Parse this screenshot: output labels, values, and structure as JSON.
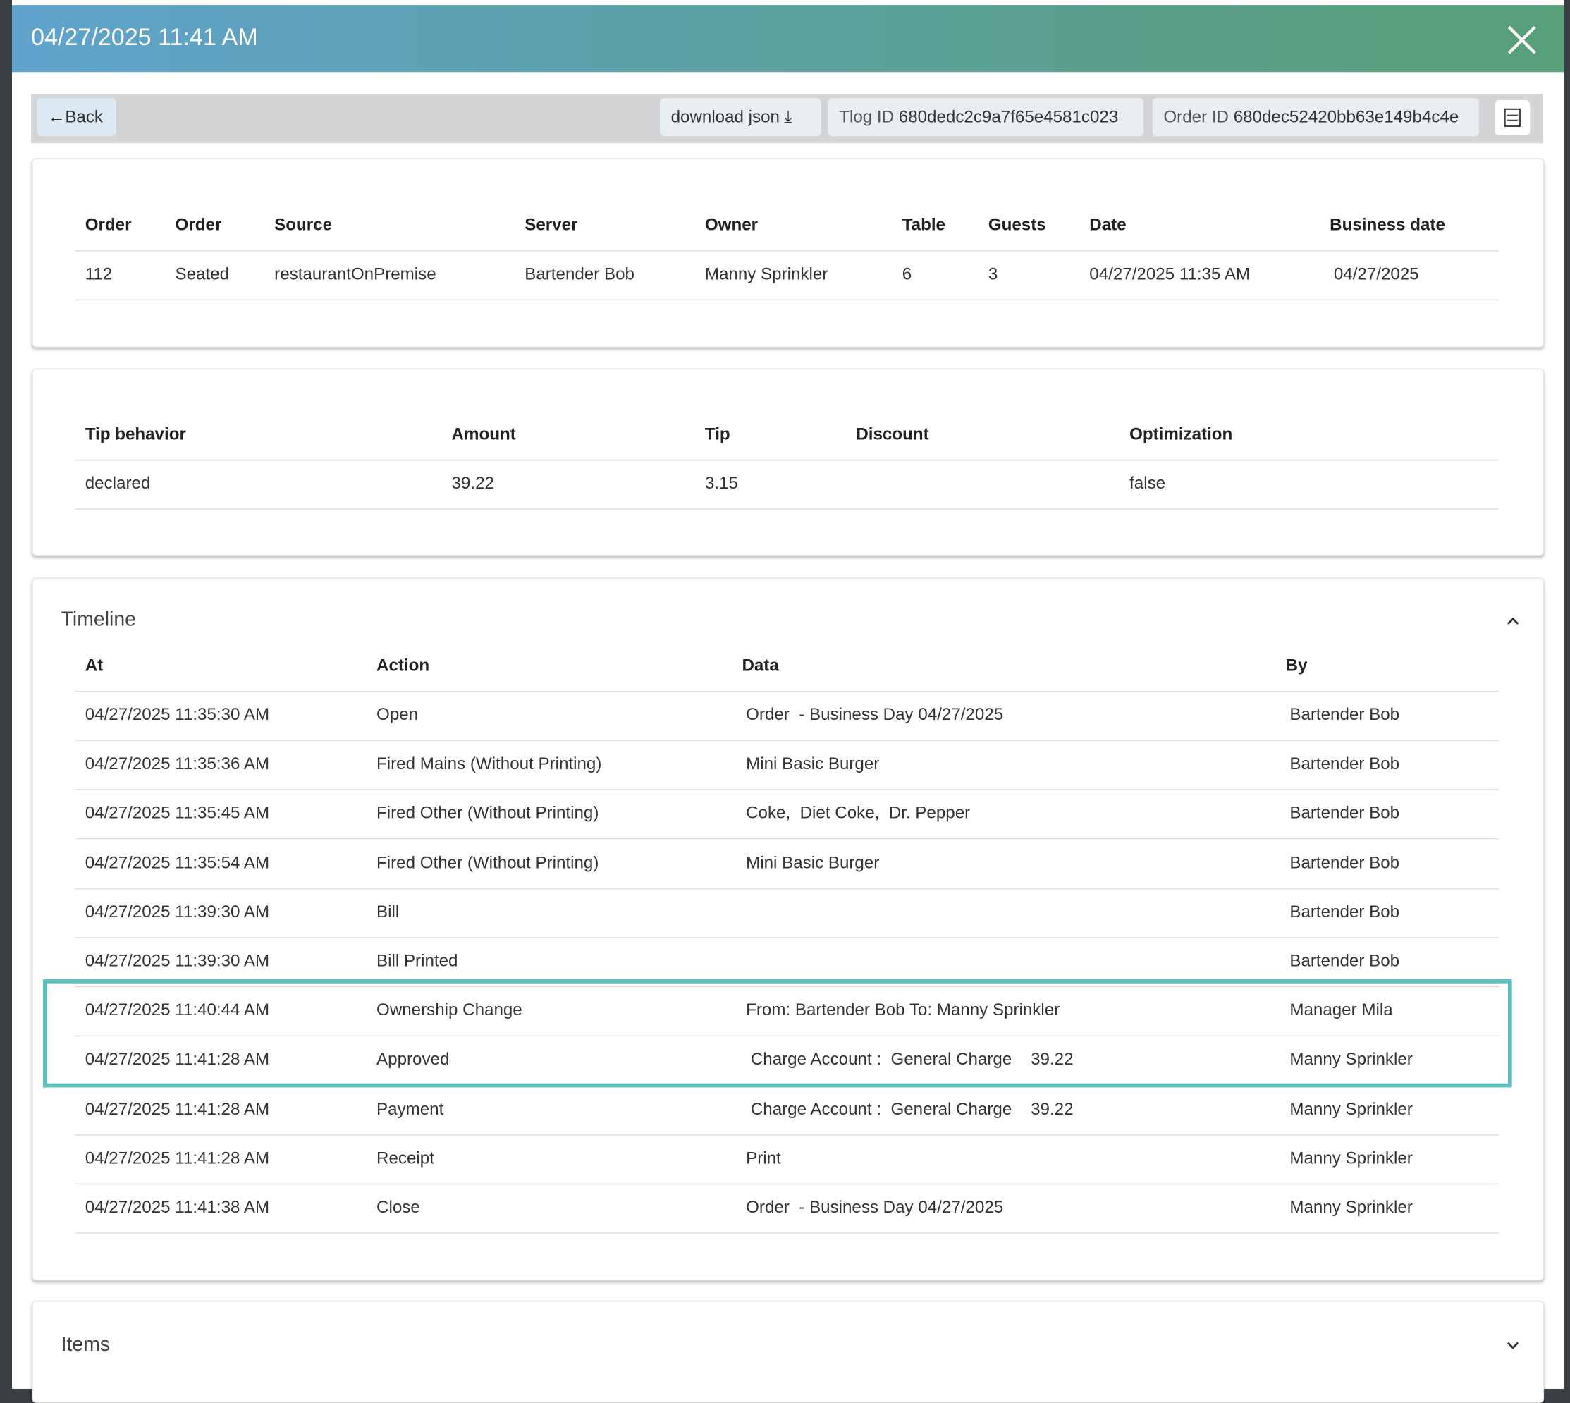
{
  "header": {
    "title": "04/27/2025 11:41 AM"
  },
  "toolbar": {
    "back": "←Back",
    "download": "download json",
    "tlog_label": "Tlog ID",
    "tlog_id": "680dedc2c9a7f65e4581c023",
    "order_label": "Order ID",
    "order_id": "680dec52420bb63e149b4c4e"
  },
  "order_table": {
    "headers": [
      "Order",
      "Order",
      "Source",
      "Server",
      "Owner",
      "Table",
      "Guests",
      "Date",
      "Business date"
    ],
    "rows": [
      [
        "112",
        "Seated",
        "restaurantOnPremise",
        "Bartender Bob",
        "Manny Sprinkler",
        "6",
        "3",
        "04/27/2025 11:35 AM",
        "04/27/2025"
      ]
    ]
  },
  "payment_table": {
    "headers": [
      "Tip behavior",
      "Amount",
      "Tip",
      "Discount",
      "Optimization"
    ],
    "rows": [
      [
        "declared",
        "39.22",
        "3.15",
        "",
        "false"
      ]
    ]
  },
  "timeline": {
    "title": "Timeline",
    "headers": [
      "At",
      "Action",
      "Data",
      "By"
    ],
    "rows": [
      [
        "04/27/2025 11:35:30 AM",
        "Open",
        "Order  - Business Day 04/27/2025",
        "Bartender Bob"
      ],
      [
        "04/27/2025 11:35:36 AM",
        "Fired Mains (Without Printing)",
        "Mini Basic Burger",
        "Bartender Bob"
      ],
      [
        "04/27/2025 11:35:45 AM",
        "Fired Other (Without Printing)",
        "Coke,  Diet Coke,  Dr. Pepper",
        "Bartender Bob"
      ],
      [
        "04/27/2025 11:35:54 AM",
        "Fired Other (Without Printing)",
        "Mini Basic Burger",
        "Bartender Bob"
      ],
      [
        "04/27/2025 11:39:30 AM",
        "Bill",
        "",
        "Bartender Bob"
      ],
      [
        "04/27/2025 11:39:30 AM",
        "Bill Printed",
        "",
        "Bartender Bob"
      ],
      [
        "04/27/2025 11:40:44 AM",
        "Ownership Change",
        "From: Bartender Bob To: Manny Sprinkler",
        "Manager Mila"
      ],
      [
        "04/27/2025 11:41:28 AM",
        "Approved",
        " Charge Account :  General Charge    39.22",
        "Manny Sprinkler"
      ],
      [
        "04/27/2025 11:41:28 AM",
        "Payment",
        " Charge Account :  General Charge    39.22",
        "Manny Sprinkler"
      ],
      [
        "04/27/2025 11:41:28 AM",
        "Receipt",
        "Print",
        "Manny Sprinkler"
      ],
      [
        "04/27/2025 11:41:38 AM",
        "Close",
        "Order  - Business Day 04/27/2025",
        "Manny Sprinkler"
      ]
    ]
  },
  "items": {
    "title": "Items"
  }
}
